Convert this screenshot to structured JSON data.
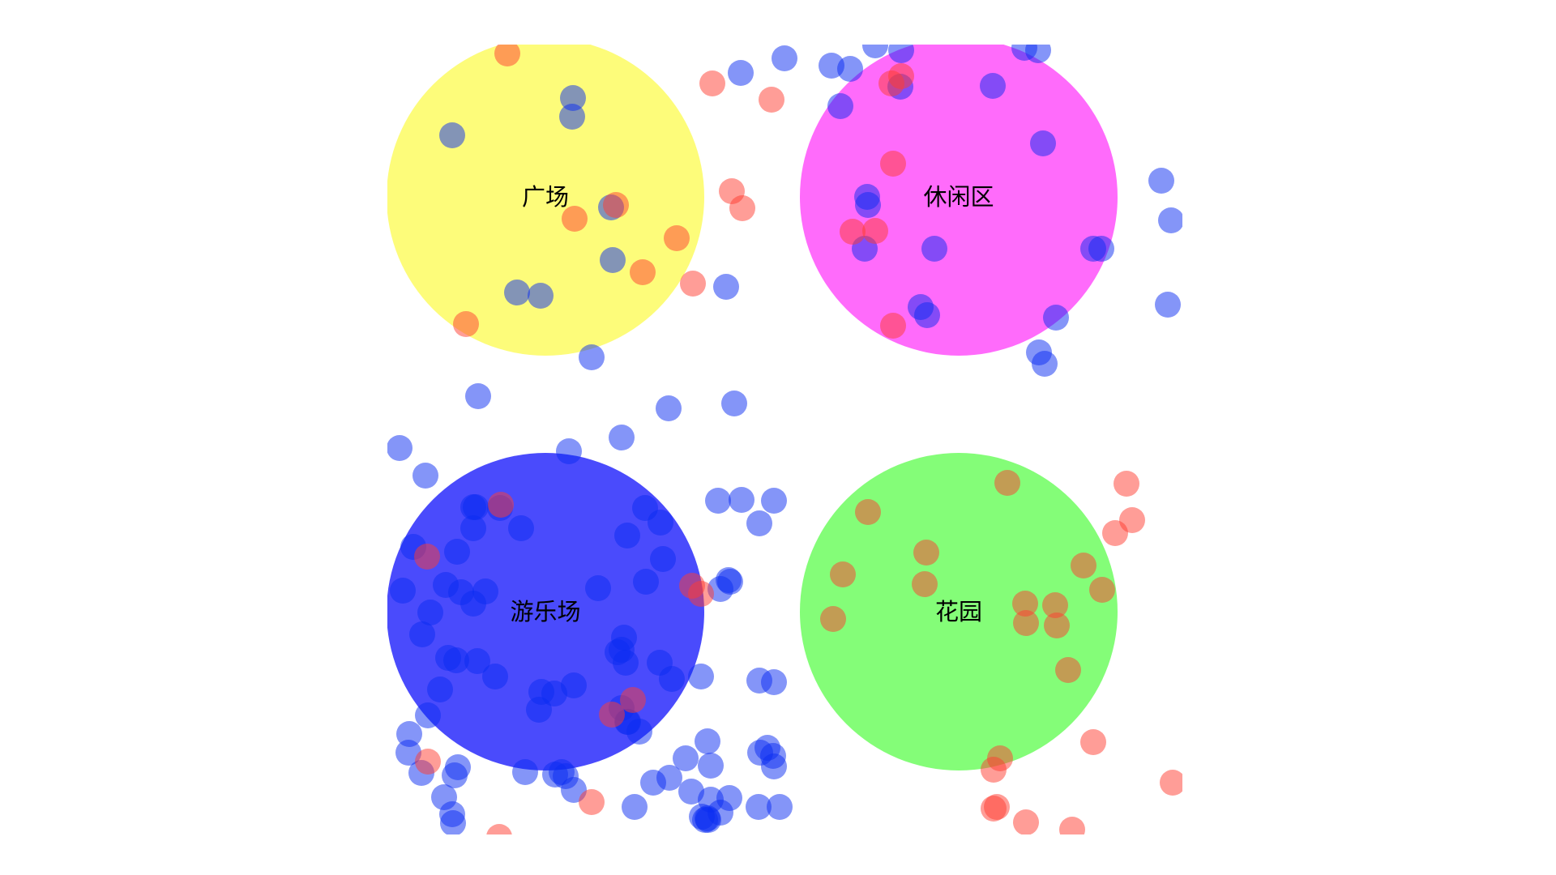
{
  "colors": {
    "background": "#ffffff",
    "person_blue": "#0a2cf2",
    "person_red": "#ff3b30",
    "label": "#000000"
  },
  "zones": [
    {
      "id": "plaza",
      "label": "广场",
      "color": "#fdfc7a",
      "opacity": 1.0
    },
    {
      "id": "leisure",
      "label": "休闲区",
      "color": "#ff6bfb",
      "opacity": 1.0
    },
    {
      "id": "playground",
      "label": "游乐场",
      "color": "#4a4bfc",
      "opacity": 1.0
    },
    {
      "id": "garden",
      "label": "花园",
      "color": "#84fd78",
      "opacity": 1.0
    }
  ],
  "person_types": [
    {
      "type": "blue",
      "color": "#0a2cf2",
      "opacity": 0.5
    },
    {
      "type": "red",
      "color": "#ff3b30",
      "opacity": 0.5
    }
  ]
}
